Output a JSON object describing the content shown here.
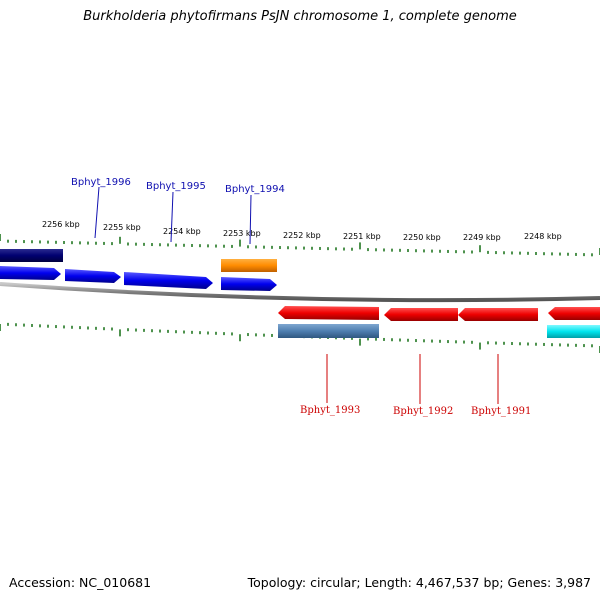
{
  "title": "Burkholderia phytofirmans PsJN chromosome 1, complete genome",
  "footer": {
    "accession": "Accession: NC_010681",
    "topology": "Topology: circular; Length: 4,467,537 bp; Genes: 3,987"
  },
  "scale_labels": [
    "2256 kbp",
    "2255 kbp",
    "2254 kbp",
    "2253 kbp",
    "2252 kbp",
    "2251 kbp",
    "2250 kbp",
    "2249 kbp",
    "2248 kbp"
  ],
  "gene_labels_top": [
    "Bphyt_1996",
    "Bphyt_1995",
    "Bphyt_1994"
  ],
  "gene_labels_bottom": [
    "Bphyt_1993",
    "Bphyt_1992",
    "Bphyt_1991"
  ],
  "colors": {
    "forward_cds": "#0000ee",
    "forward_cds_dark": "#000070",
    "forward_orange": "#ff8c00",
    "reverse_cds": "#ee0000",
    "reverse_steelblue": "#4f7fb0",
    "reverse_cyan": "#00e5ee",
    "tick": "#227722",
    "backbone": "#808080"
  }
}
